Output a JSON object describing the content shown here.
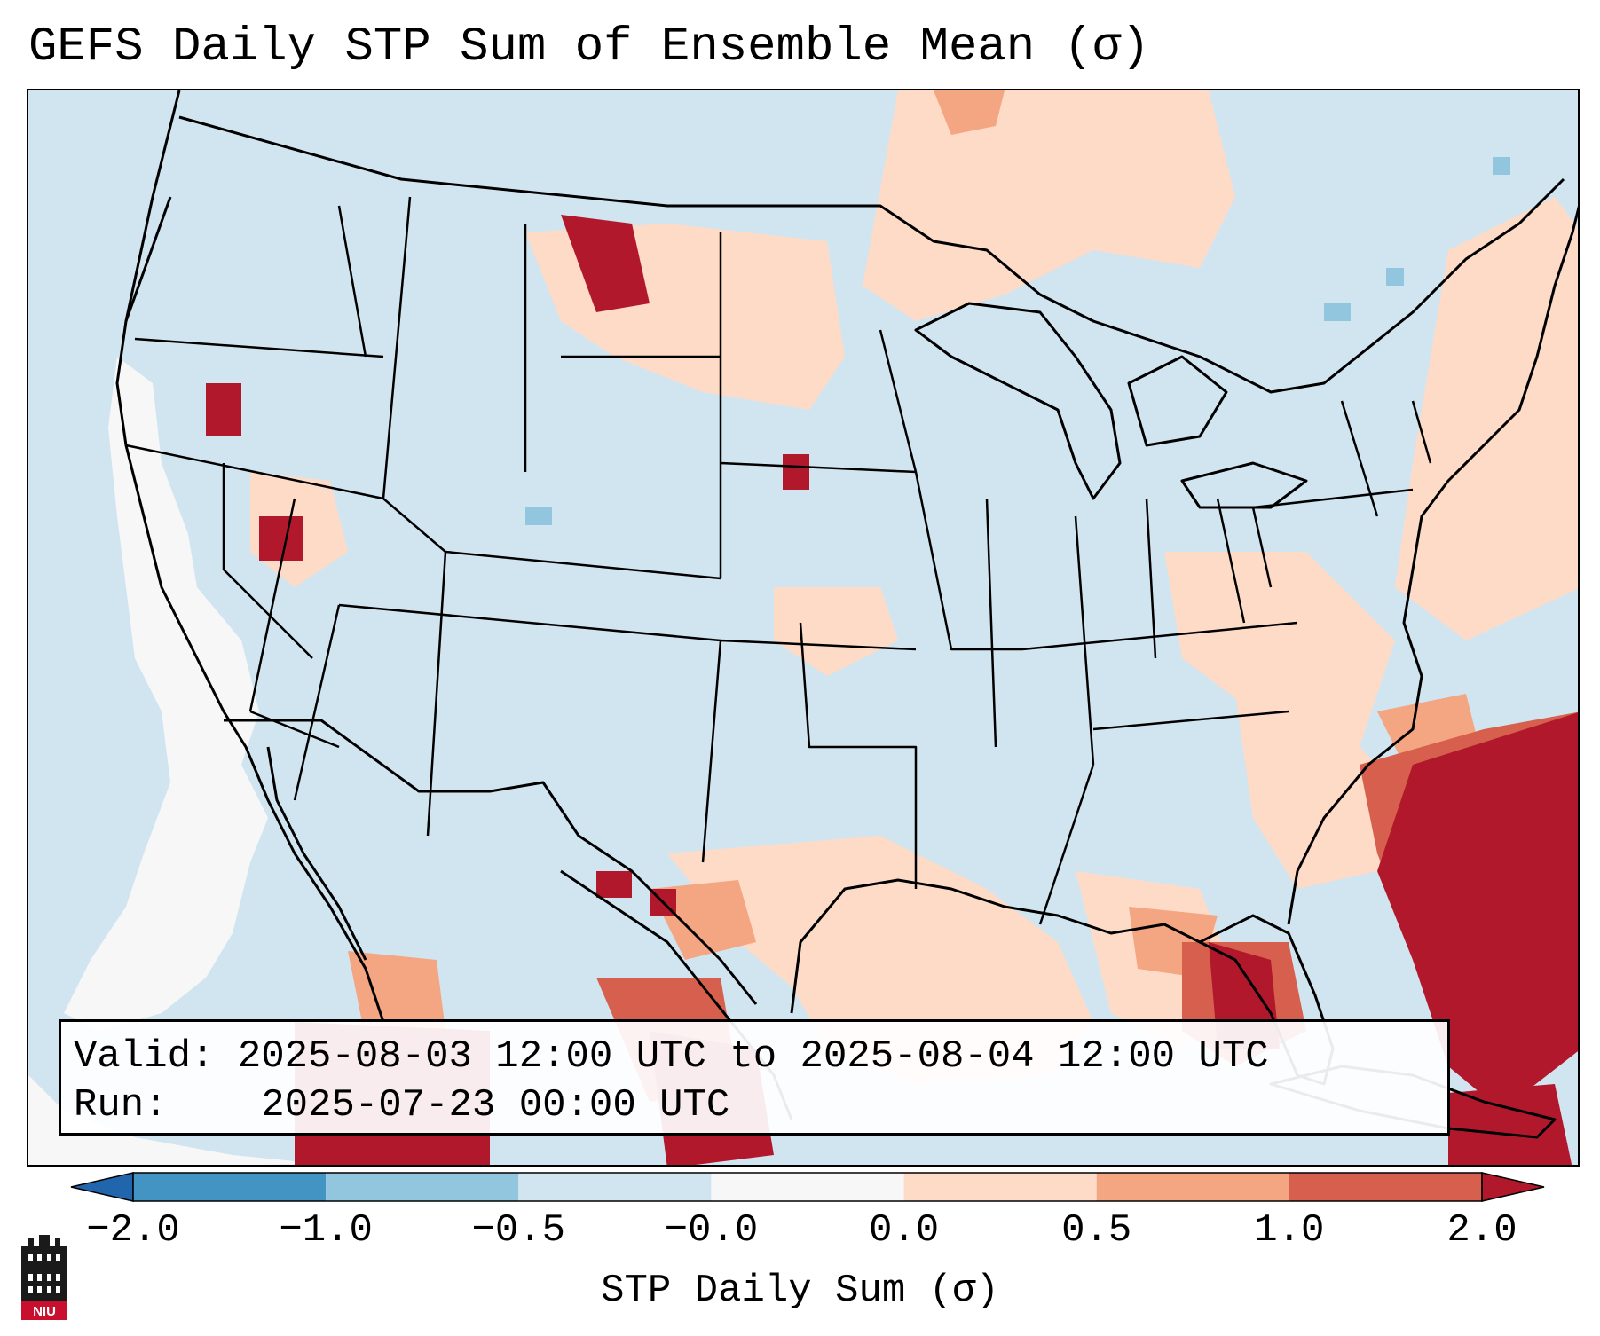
{
  "title": "GEFS Daily STP Sum of Ensemble Mean (σ)",
  "info": {
    "valid_label": "Valid:",
    "valid_value": "2025-08-03 12:00 UTC to 2025-08-04 12:00 UTC",
    "run_label": "Run:",
    "run_value": "2025-07-23 00:00 UTC"
  },
  "colorbar": {
    "label": "STP Daily Sum (σ)",
    "ticks": [
      "−2.0",
      "−1.0",
      "−0.5",
      "−0.0",
      "0.0",
      "0.5",
      "1.0",
      "2.0"
    ],
    "colors": [
      "#4393c3",
      "#92c5de",
      "#d1e5f0",
      "#f7f7f7",
      "#fddbc7",
      "#f4a582",
      "#d6604d"
    ],
    "under_color": "#2166ac",
    "over_color": "#b2182b"
  },
  "map": {
    "background_color": "#d1e5f0",
    "region": "Contiguous United States and surroundings"
  },
  "logo": {
    "text": "NIU"
  }
}
